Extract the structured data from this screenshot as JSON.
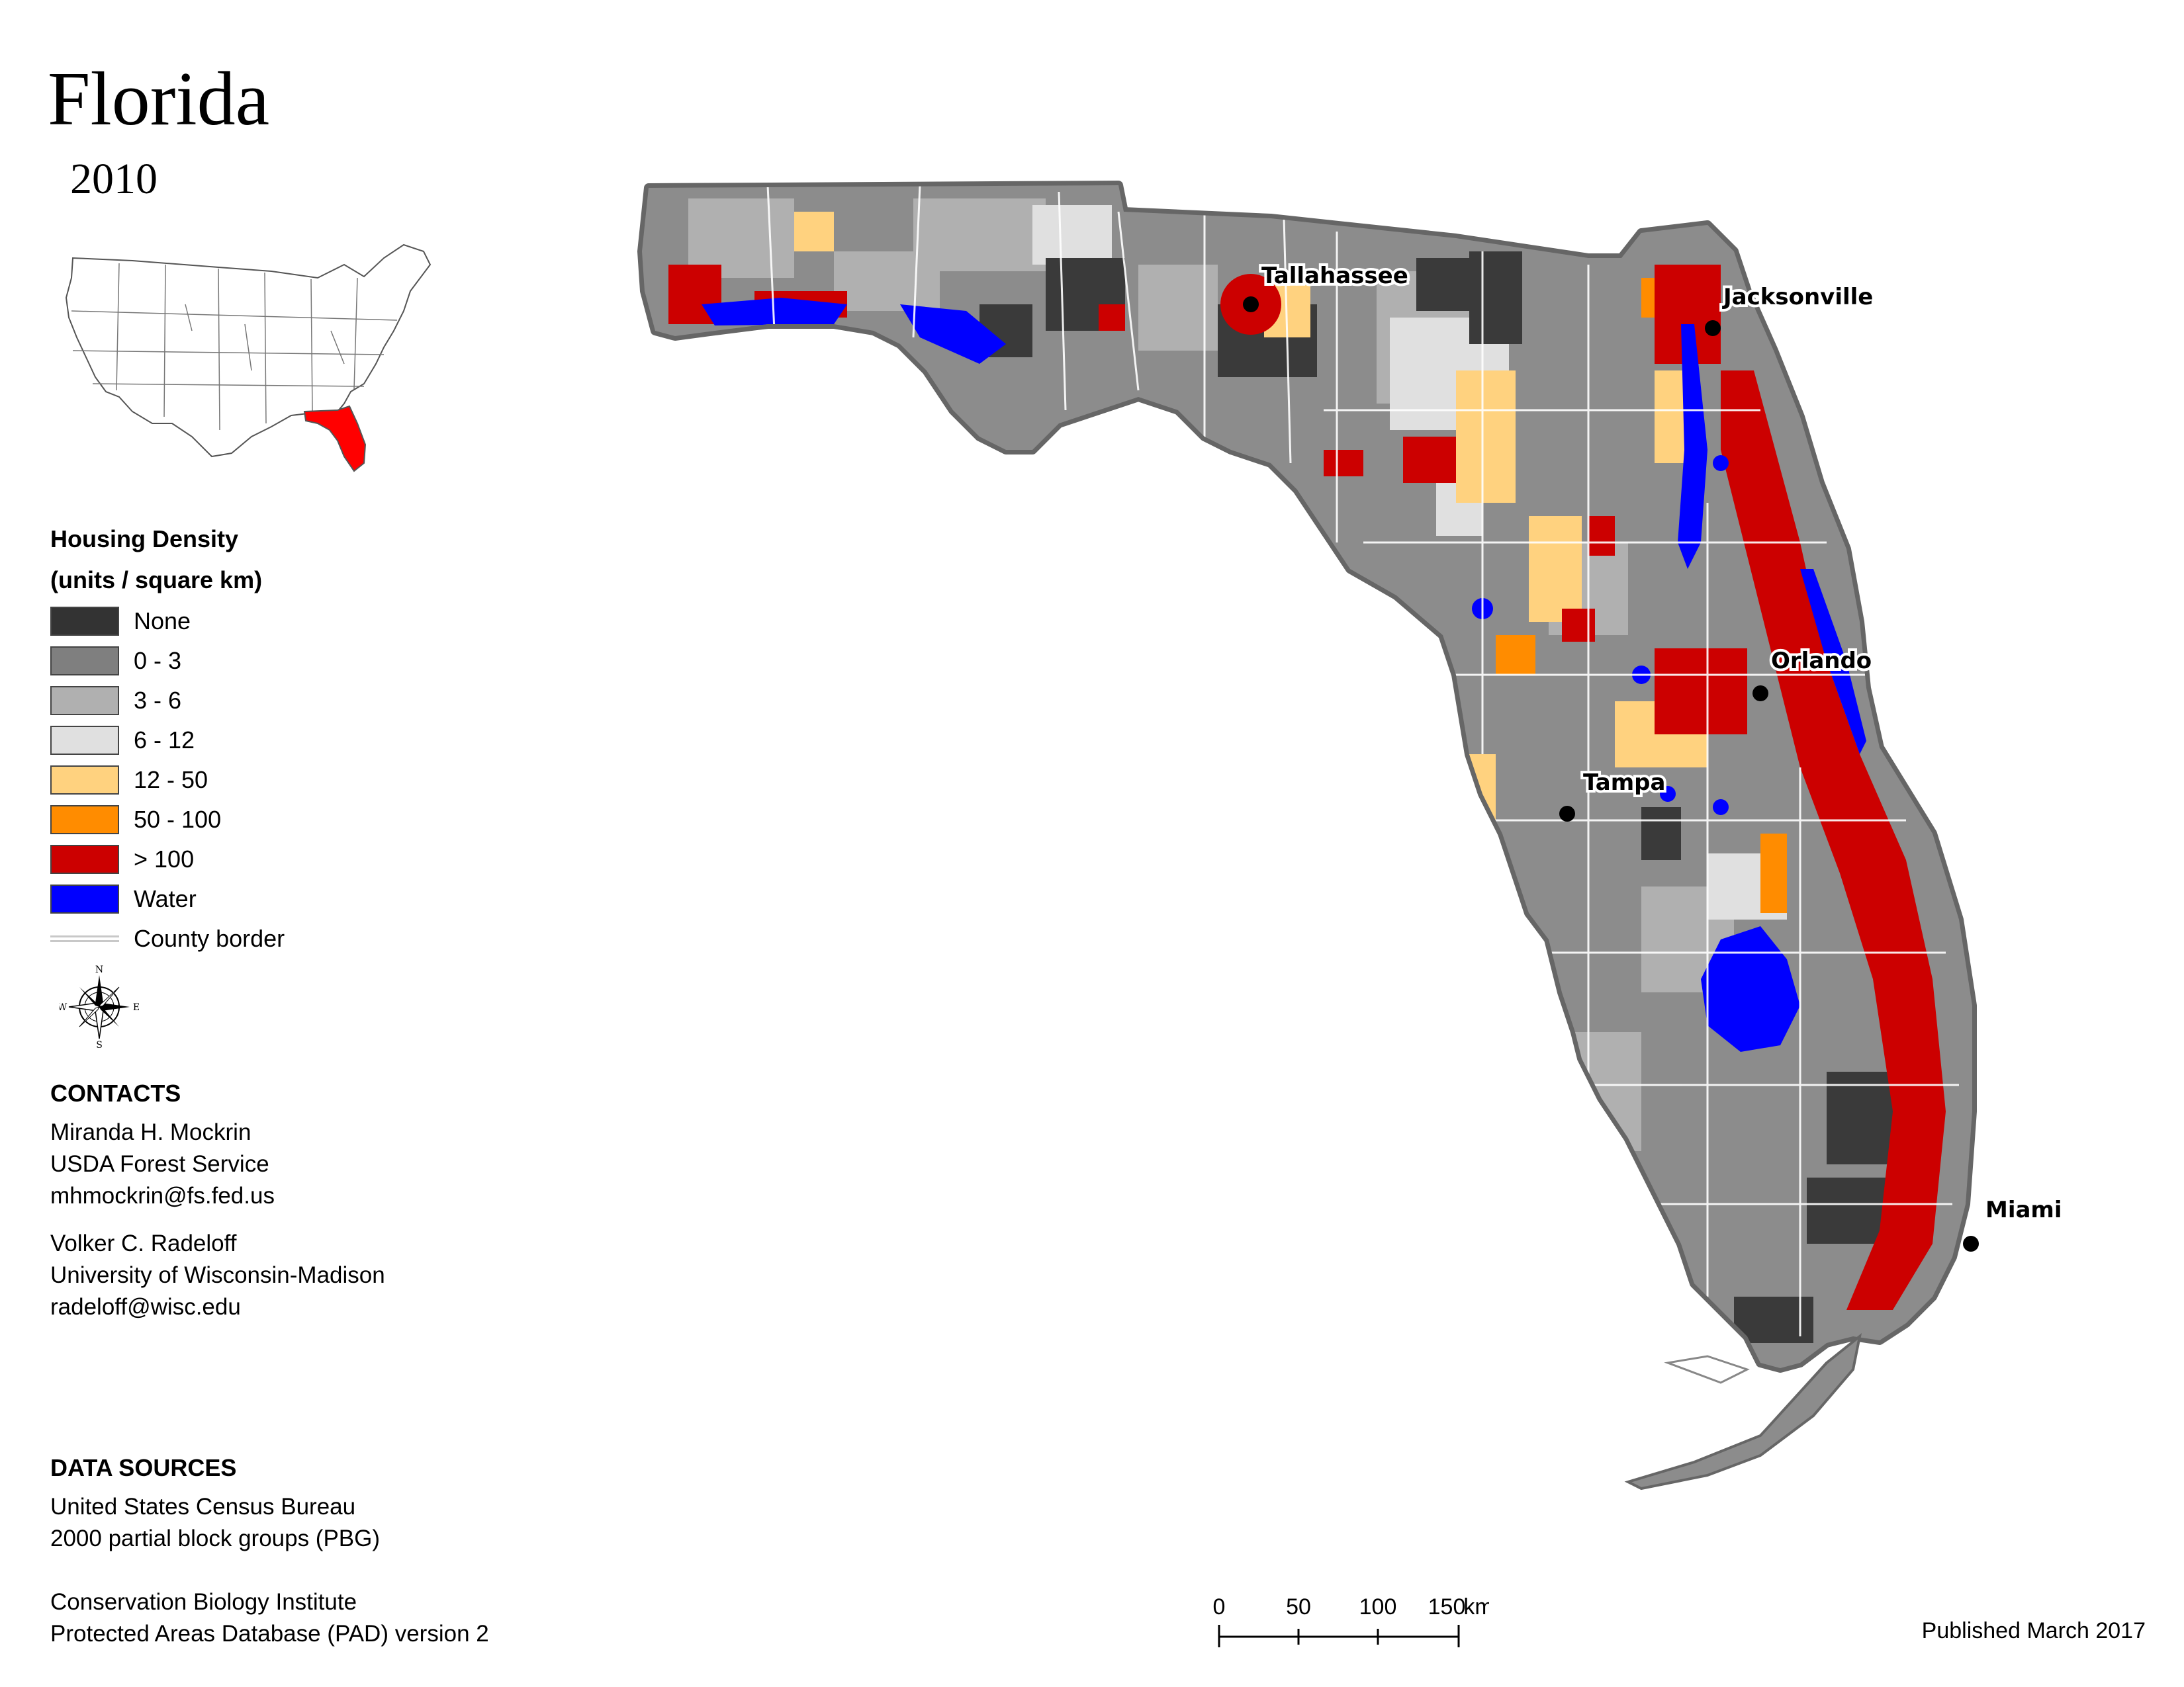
{
  "title": "Florida",
  "year": "2010",
  "legend": {
    "title_line1": "Housing Density",
    "title_line2": "(units / square km)",
    "items": [
      {
        "label": "None",
        "color": "#333333"
      },
      {
        "label": "0 - 3",
        "color": "#7f7f7f"
      },
      {
        "label": "3 - 6",
        "color": "#b0b0b0"
      },
      {
        "label": "6 - 12",
        "color": "#e0e0e0"
      },
      {
        "label": "12 - 50",
        "color": "#ffd27f"
      },
      {
        "label": "50 - 100",
        "color": "#ff8c00"
      },
      {
        "label": "> 100",
        "color": "#cc0000"
      },
      {
        "label": "Water",
        "color": "#0000ff"
      }
    ],
    "county_border_label": "County border"
  },
  "compass": {
    "n": "N",
    "s": "S",
    "e": "E",
    "w": "W"
  },
  "contacts": {
    "heading": "CONTACTS",
    "person1": [
      "Miranda H. Mockrin",
      "USDA Forest Service",
      "mhmockrin@fs.fed.us"
    ],
    "person2": [
      "Volker C. Radeloff",
      "University of Wisconsin-Madison",
      "radeloff@wisc.edu"
    ]
  },
  "data_sources": {
    "heading": "DATA SOURCES",
    "source1": [
      "United States Census Bureau",
      "2000 partial block groups (PBG)"
    ],
    "source2": [
      "Conservation Biology Institute",
      "Protected Areas Database (PAD) version 2"
    ]
  },
  "cities": [
    {
      "name": "Tallahassee"
    },
    {
      "name": "Jacksonville"
    },
    {
      "name": "Orlando"
    },
    {
      "name": "Tampa"
    },
    {
      "name": "Miami"
    }
  ],
  "scale": {
    "ticks": [
      "0",
      "50",
      "100",
      "150"
    ],
    "unit": "km"
  },
  "published": "Published March 2017",
  "highlight_color": "#ff0000"
}
